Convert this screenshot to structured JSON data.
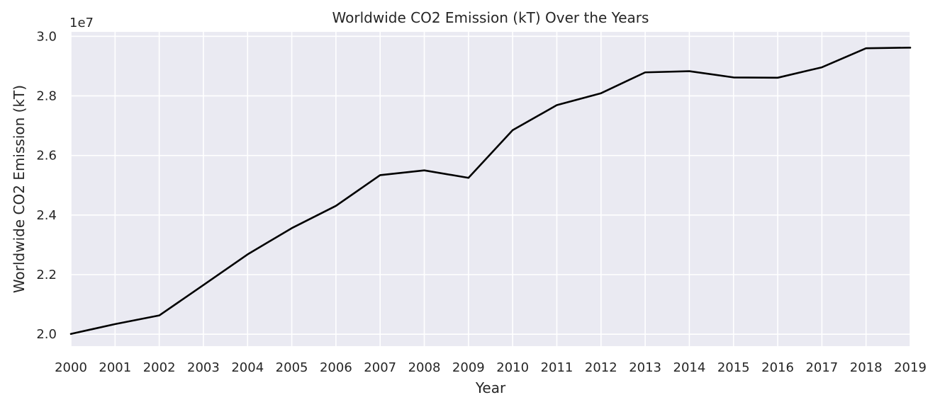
{
  "chart_data": {
    "type": "line",
    "title": "Worldwide CO2 Emission (kT) Over the Years",
    "xlabel": "Year",
    "ylabel": "Worldwide CO2 Emission (kT)",
    "y_offset_label": "1e7",
    "x": [
      "2000",
      "2001",
      "2002",
      "2003",
      "2004",
      "2005",
      "2006",
      "2007",
      "2008",
      "2009",
      "2010",
      "2011",
      "2012",
      "2013",
      "2014",
      "2015",
      "2016",
      "2017",
      "2018",
      "2019"
    ],
    "series": [
      {
        "values": [
          20010000,
          20340000,
          20630000,
          21650000,
          22680000,
          23560000,
          24310000,
          25340000,
          25500000,
          25250000,
          26850000,
          27690000,
          28090000,
          28790000,
          28830000,
          28620000,
          28610000,
          28960000,
          29600000,
          29620000
        ]
      }
    ],
    "yticks": [
      2.0,
      2.2,
      2.4,
      2.6,
      2.8,
      3.0
    ],
    "ytick_labels": [
      "2.0",
      "2.2",
      "2.4",
      "2.6",
      "2.8",
      "3.0"
    ],
    "ylim": [
      19600000,
      30150000
    ],
    "grid": true,
    "colors": {
      "line": "#000000",
      "plot_background": "#eaeaf2",
      "grid": "#ffffff",
      "text": "#262626"
    }
  }
}
